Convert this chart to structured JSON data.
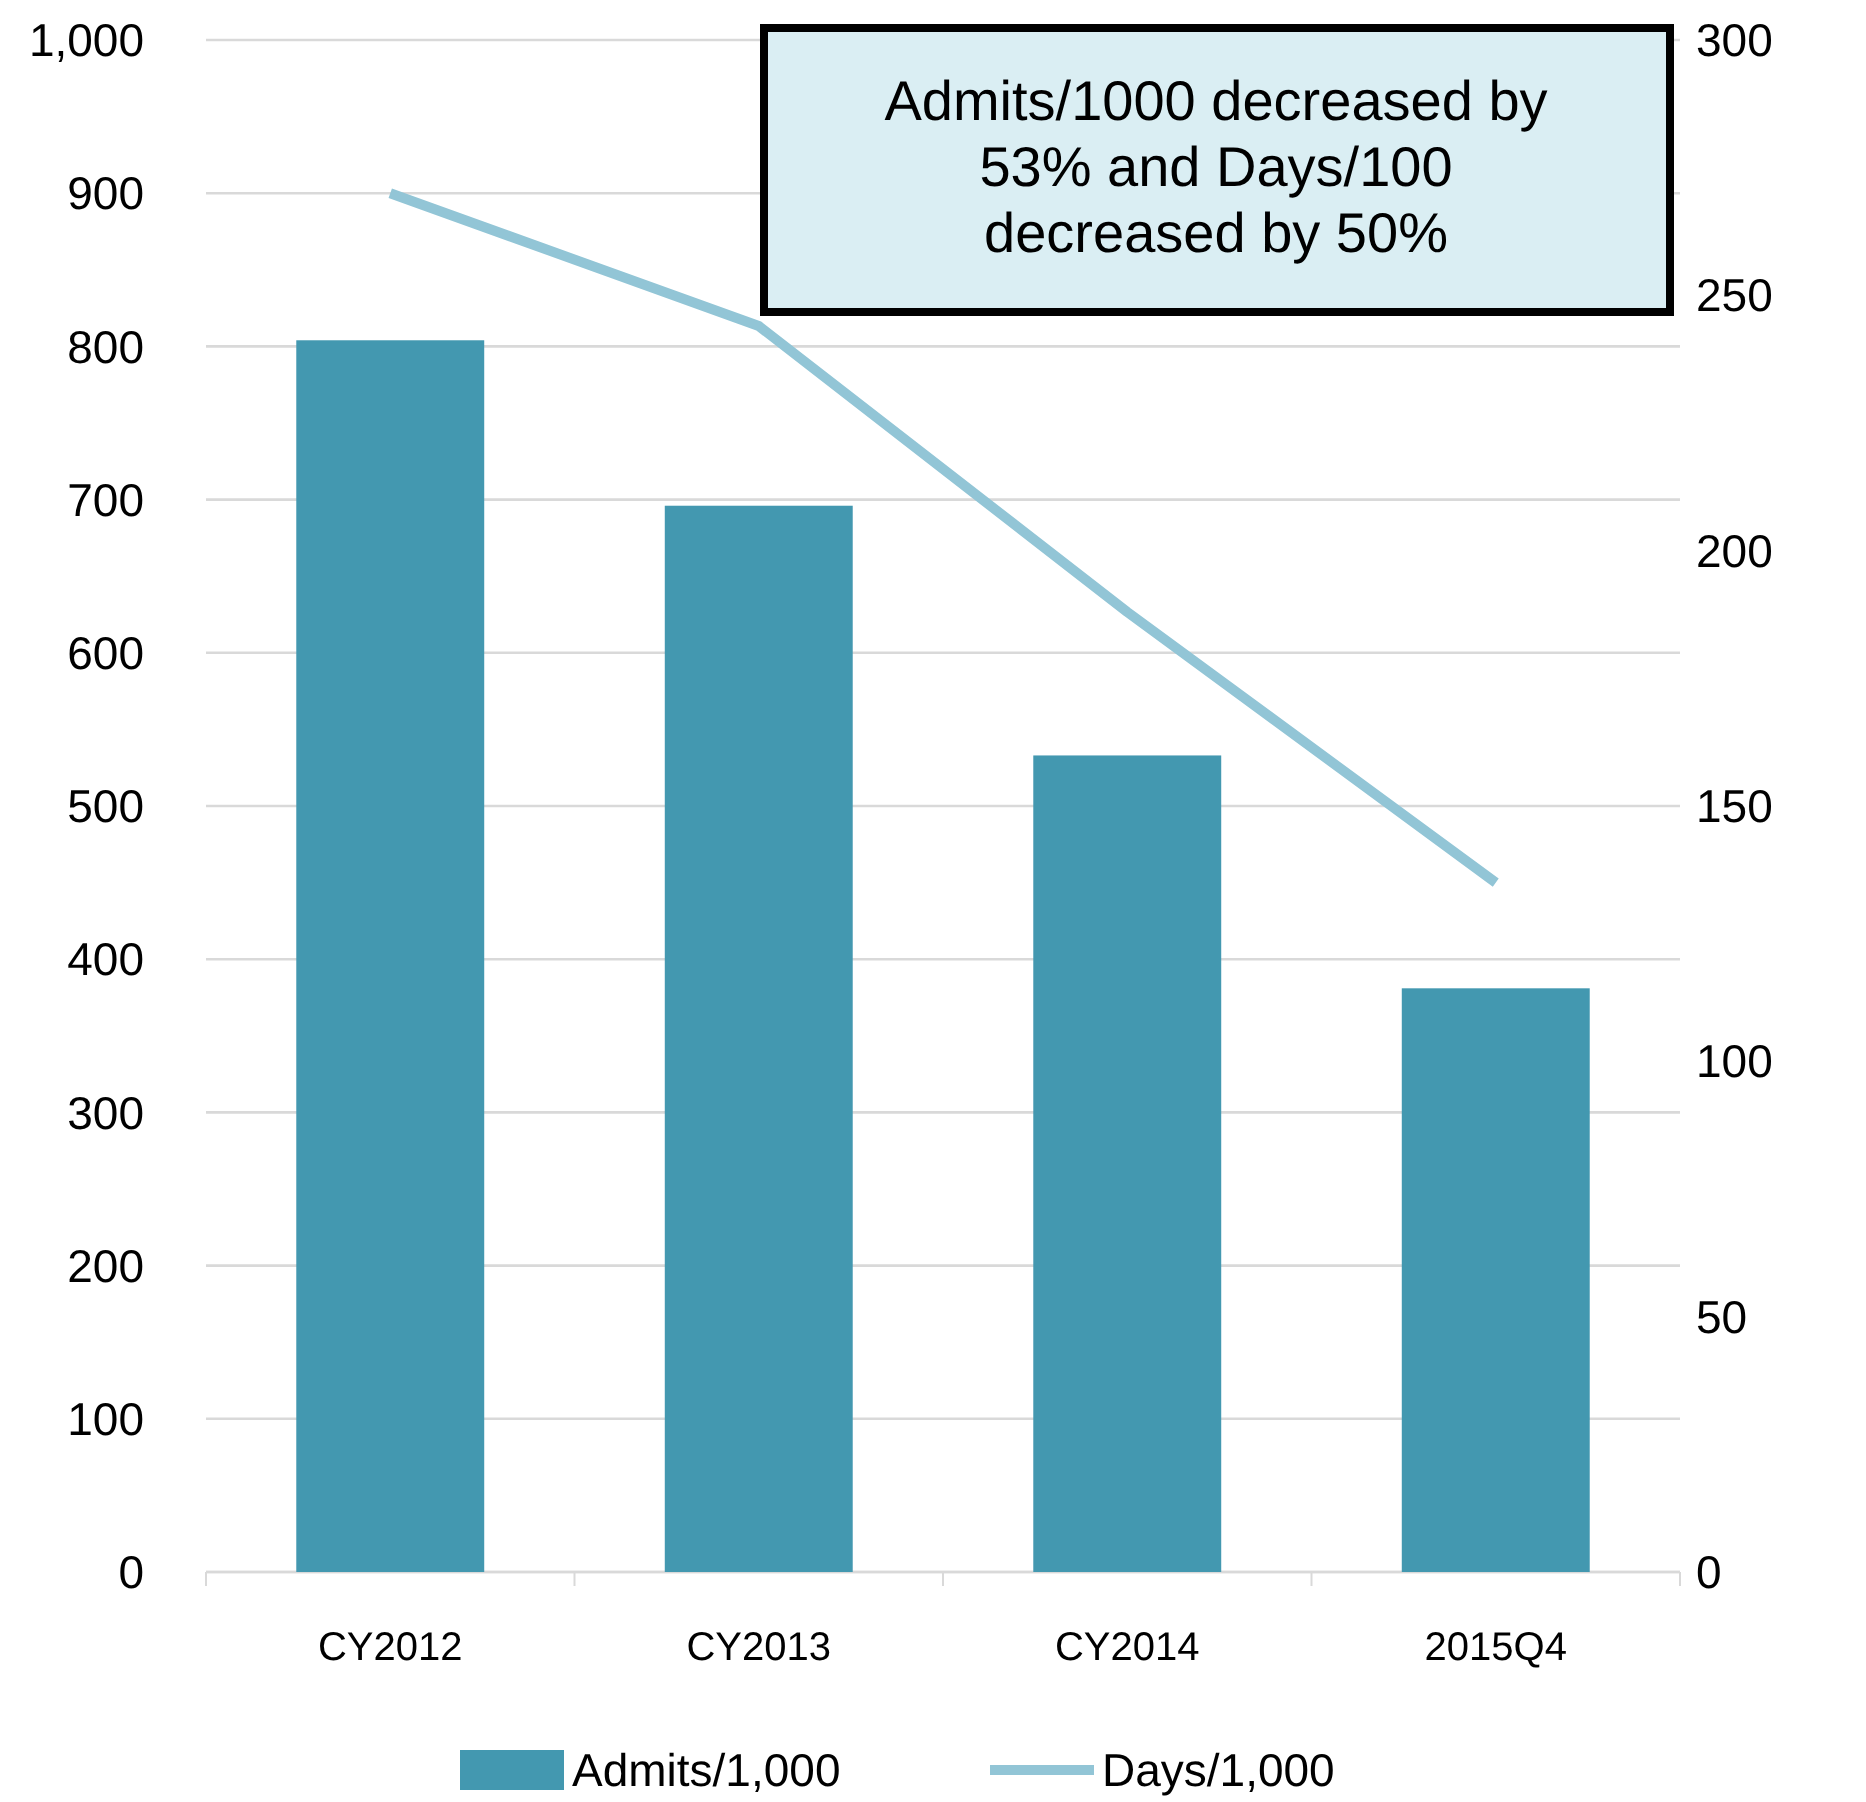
{
  "chart_data": {
    "type": "bar",
    "categories": [
      "CY2012",
      "CY2013",
      "CY2014",
      "2015Q4"
    ],
    "series": [
      {
        "name": "Admits/1,000",
        "color": "#4398b0",
        "values": [
          804,
          696,
          533,
          381
        ]
      },
      {
        "name": "Days/1,000",
        "type": "line",
        "axis": "y2",
        "color": "#92c5d6",
        "values": [
          270,
          244,
          188,
          135
        ]
      }
    ],
    "ylim": [
      0,
      1000
    ],
    "yticks": [
      0,
      100,
      200,
      300,
      400,
      500,
      600,
      700,
      800,
      900,
      {
        "value": 1000,
        "label": "1,000"
      }
    ],
    "y2lim": [
      0,
      300
    ],
    "y2ticks": [
      0,
      50,
      100,
      150,
      200,
      250,
      300
    ],
    "grid": "y",
    "legend": "bottom",
    "marker": "none",
    "annotations": [
      "Admits/1000 decreased by 53% and Days/100 decreased by 50%"
    ]
  }
}
